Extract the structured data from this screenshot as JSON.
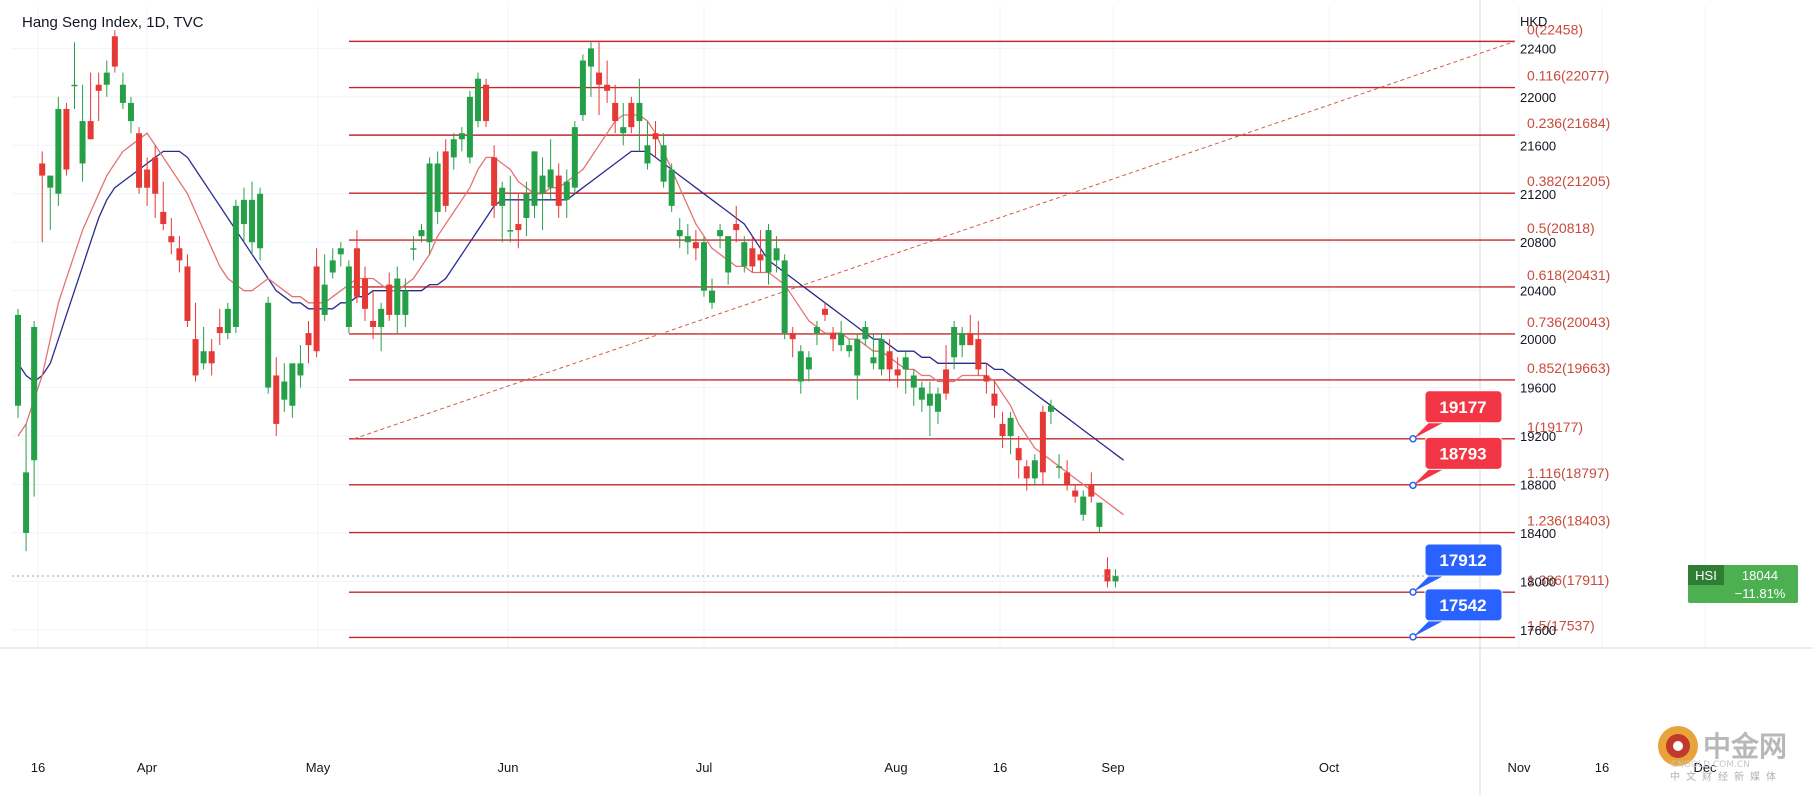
{
  "chart_data": {
    "type": "candlestick",
    "title": "Hang Seng Index, 1D, TVC",
    "currency": "HKD",
    "ylim": [
      17450,
      22750
    ],
    "y_ticks": [
      17600,
      18000,
      18400,
      18800,
      19200,
      19600,
      20000,
      20400,
      20800,
      21200,
      21600,
      22000,
      22400
    ],
    "x_tick_labels": [
      "16",
      "Apr",
      "May",
      "Jun",
      "Jul",
      "Aug",
      "16",
      "Sep",
      "Oct",
      "Nov",
      "16",
      "Dec"
    ],
    "grid": true,
    "fibonacci": {
      "levels": [
        {
          "label": "0(22458)",
          "value": 22458
        },
        {
          "label": "0.116(22077)",
          "value": 22077
        },
        {
          "label": "0.236(21684)",
          "value": 21684
        },
        {
          "label": "0.382(21205)",
          "value": 21205
        },
        {
          "label": "0.5(20818)",
          "value": 20818
        },
        {
          "label": "0.618(20431)",
          "value": 20431
        },
        {
          "label": "0.736(20043)",
          "value": 20043
        },
        {
          "label": "0.852(19663)",
          "value": 19663
        },
        {
          "label": "1(19177)",
          "value": 19177
        },
        {
          "label": "1.116(18797)",
          "value": 18797
        },
        {
          "label": "1.236(18403)",
          "value": 18403
        },
        {
          "label": "1.386(17911)",
          "value": 17911
        },
        {
          "label": "1.5(17537)",
          "value": 17537
        }
      ],
      "trend_start": 19177,
      "trend_end": 22458
    },
    "callouts": [
      {
        "label": "19177",
        "value": 19177,
        "color": "#f23645"
      },
      {
        "label": "18793",
        "value": 18793,
        "color": "#f23645"
      },
      {
        "label": "17912",
        "value": 17912,
        "color": "#2962ff"
      },
      {
        "label": "17542",
        "value": 17542,
        "color": "#2962ff"
      }
    ],
    "last_price": {
      "symbol": "HSI",
      "value": "18044",
      "change": "−11.81%",
      "color": "#4caf50"
    },
    "candles": [
      {
        "o": 19450,
        "h": 20250,
        "l": 19350,
        "c": 20200
      },
      {
        "o": 18400,
        "h": 19300,
        "l": 18250,
        "c": 18900
      },
      {
        "o": 19000,
        "h": 20150,
        "l": 18700,
        "c": 20100
      },
      {
        "o": 21450,
        "h": 21550,
        "l": 20800,
        "c": 21350
      },
      {
        "o": 21250,
        "h": 21350,
        "l": 20900,
        "c": 21350
      },
      {
        "o": 21200,
        "h": 22000,
        "l": 21100,
        "c": 21900
      },
      {
        "o": 21900,
        "h": 21950,
        "l": 21350,
        "c": 21400
      },
      {
        "o": 22100,
        "h": 22450,
        "l": 21900,
        "c": 22100
      },
      {
        "o": 21450,
        "h": 22100,
        "l": 21300,
        "c": 21800
      },
      {
        "o": 21800,
        "h": 22200,
        "l": 21650,
        "c": 21650
      },
      {
        "o": 22100,
        "h": 22200,
        "l": 21800,
        "c": 22050
      },
      {
        "o": 22100,
        "h": 22300,
        "l": 22000,
        "c": 22200
      },
      {
        "o": 22500,
        "h": 22550,
        "l": 22200,
        "c": 22250
      },
      {
        "o": 21950,
        "h": 22200,
        "l": 21900,
        "c": 22100
      },
      {
        "o": 21800,
        "h": 22000,
        "l": 21700,
        "c": 21950
      },
      {
        "o": 21700,
        "h": 21750,
        "l": 21200,
        "c": 21250
      },
      {
        "o": 21400,
        "h": 21500,
        "l": 21100,
        "c": 21250
      },
      {
        "o": 21500,
        "h": 21600,
        "l": 21000,
        "c": 21200
      },
      {
        "o": 21050,
        "h": 21300,
        "l": 20900,
        "c": 20950
      },
      {
        "o": 20850,
        "h": 21000,
        "l": 20700,
        "c": 20800
      },
      {
        "o": 20750,
        "h": 20850,
        "l": 20550,
        "c": 20650
      },
      {
        "o": 20600,
        "h": 20700,
        "l": 20100,
        "c": 20150
      },
      {
        "o": 20000,
        "h": 20300,
        "l": 19650,
        "c": 19700
      },
      {
        "o": 19800,
        "h": 20100,
        "l": 19750,
        "c": 19900
      },
      {
        "o": 19900,
        "h": 20000,
        "l": 19700,
        "c": 19800
      },
      {
        "o": 20100,
        "h": 20250,
        "l": 19950,
        "c": 20050
      },
      {
        "o": 20050,
        "h": 20300,
        "l": 20000,
        "c": 20250
      },
      {
        "o": 20100,
        "h": 21150,
        "l": 20050,
        "c": 21100
      },
      {
        "o": 20950,
        "h": 21250,
        "l": 20800,
        "c": 21150
      },
      {
        "o": 20800,
        "h": 21300,
        "l": 20700,
        "c": 21150
      },
      {
        "o": 20750,
        "h": 21250,
        "l": 20650,
        "c": 21200
      },
      {
        "o": 19600,
        "h": 20350,
        "l": 19550,
        "c": 20300
      },
      {
        "o": 19700,
        "h": 19850,
        "l": 19200,
        "c": 19300
      },
      {
        "o": 19500,
        "h": 19800,
        "l": 19400,
        "c": 19650
      },
      {
        "o": 19450,
        "h": 19800,
        "l": 19350,
        "c": 19800
      },
      {
        "o": 19700,
        "h": 19950,
        "l": 19600,
        "c": 19800
      },
      {
        "o": 20050,
        "h": 20150,
        "l": 19800,
        "c": 19950
      },
      {
        "o": 20600,
        "h": 20750,
        "l": 19850,
        "c": 19900
      },
      {
        "o": 20200,
        "h": 20700,
        "l": 20150,
        "c": 20450
      },
      {
        "o": 20550,
        "h": 20750,
        "l": 20500,
        "c": 20650
      },
      {
        "o": 20700,
        "h": 20800,
        "l": 20600,
        "c": 20750
      },
      {
        "o": 20100,
        "h": 20650,
        "l": 20050,
        "c": 20600
      },
      {
        "o": 20750,
        "h": 20900,
        "l": 20300,
        "c": 20350
      },
      {
        "o": 20500,
        "h": 20600,
        "l": 20150,
        "c": 20250
      },
      {
        "o": 20150,
        "h": 20400,
        "l": 20000,
        "c": 20100
      },
      {
        "o": 20100,
        "h": 20300,
        "l": 19900,
        "c": 20250
      },
      {
        "o": 20450,
        "h": 20550,
        "l": 20150,
        "c": 20200
      },
      {
        "o": 20200,
        "h": 20600,
        "l": 20050,
        "c": 20500
      },
      {
        "o": 20200,
        "h": 20500,
        "l": 20100,
        "c": 20400
      },
      {
        "o": 20750,
        "h": 20850,
        "l": 20650,
        "c": 20750
      },
      {
        "o": 20850,
        "h": 20950,
        "l": 20800,
        "c": 20900
      },
      {
        "o": 20800,
        "h": 21500,
        "l": 20700,
        "c": 21450
      },
      {
        "o": 21050,
        "h": 21550,
        "l": 20950,
        "c": 21450
      },
      {
        "o": 21550,
        "h": 21650,
        "l": 21050,
        "c": 21100
      },
      {
        "o": 21500,
        "h": 21700,
        "l": 21400,
        "c": 21650
      },
      {
        "o": 21650,
        "h": 21750,
        "l": 21550,
        "c": 21700
      },
      {
        "o": 21500,
        "h": 22050,
        "l": 21450,
        "c": 22000
      },
      {
        "o": 21800,
        "h": 22200,
        "l": 21750,
        "c": 22150
      },
      {
        "o": 22100,
        "h": 22150,
        "l": 21750,
        "c": 21800
      },
      {
        "o": 21500,
        "h": 21600,
        "l": 21000,
        "c": 21100
      },
      {
        "o": 21100,
        "h": 21300,
        "l": 20800,
        "c": 21250
      },
      {
        "o": 20900,
        "h": 21350,
        "l": 20800,
        "c": 20900
      },
      {
        "o": 20950,
        "h": 21200,
        "l": 20750,
        "c": 20900
      },
      {
        "o": 21000,
        "h": 21300,
        "l": 20850,
        "c": 21200
      },
      {
        "o": 21100,
        "h": 21550,
        "l": 21000,
        "c": 21550
      },
      {
        "o": 21200,
        "h": 21500,
        "l": 20900,
        "c": 21350
      },
      {
        "o": 21250,
        "h": 21650,
        "l": 21150,
        "c": 21400
      },
      {
        "o": 21350,
        "h": 21450,
        "l": 21000,
        "c": 21100
      },
      {
        "o": 21150,
        "h": 21400,
        "l": 21000,
        "c": 21300
      },
      {
        "o": 21250,
        "h": 21800,
        "l": 21200,
        "c": 21750
      },
      {
        "o": 21850,
        "h": 22350,
        "l": 21800,
        "c": 22300
      },
      {
        "o": 22250,
        "h": 22450,
        "l": 22000,
        "c": 22400
      },
      {
        "o": 22200,
        "h": 22450,
        "l": 21850,
        "c": 22100
      },
      {
        "o": 22100,
        "h": 22300,
        "l": 21950,
        "c": 22050
      },
      {
        "o": 21950,
        "h": 22100,
        "l": 21700,
        "c": 21800
      },
      {
        "o": 21700,
        "h": 21950,
        "l": 21600,
        "c": 21750
      },
      {
        "o": 21950,
        "h": 22000,
        "l": 21700,
        "c": 21750
      },
      {
        "o": 21800,
        "h": 22150,
        "l": 21550,
        "c": 21950
      },
      {
        "o": 21450,
        "h": 21800,
        "l": 21400,
        "c": 21600
      },
      {
        "o": 21700,
        "h": 21800,
        "l": 21500,
        "c": 21650
      },
      {
        "o": 21300,
        "h": 21700,
        "l": 21250,
        "c": 21600
      },
      {
        "o": 21100,
        "h": 21450,
        "l": 21050,
        "c": 21400
      },
      {
        "o": 20850,
        "h": 21000,
        "l": 20750,
        "c": 20900
      },
      {
        "o": 20800,
        "h": 20950,
        "l": 20700,
        "c": 20850
      },
      {
        "o": 20800,
        "h": 20900,
        "l": 20650,
        "c": 20750
      },
      {
        "o": 20400,
        "h": 20850,
        "l": 20350,
        "c": 20800
      },
      {
        "o": 20300,
        "h": 20500,
        "l": 20250,
        "c": 20400
      },
      {
        "o": 20850,
        "h": 20950,
        "l": 20750,
        "c": 20900
      },
      {
        "o": 20550,
        "h": 20800,
        "l": 20450,
        "c": 20850
      },
      {
        "o": 20950,
        "h": 21100,
        "l": 20800,
        "c": 20900
      },
      {
        "o": 20600,
        "h": 20850,
        "l": 20550,
        "c": 20800
      },
      {
        "o": 20750,
        "h": 20850,
        "l": 20550,
        "c": 20600
      },
      {
        "o": 20700,
        "h": 20900,
        "l": 20550,
        "c": 20650
      },
      {
        "o": 20550,
        "h": 20950,
        "l": 20450,
        "c": 20900
      },
      {
        "o": 20650,
        "h": 20850,
        "l": 20550,
        "c": 20750
      },
      {
        "o": 20050,
        "h": 20700,
        "l": 20000,
        "c": 20650
      },
      {
        "o": 20050,
        "h": 20100,
        "l": 19850,
        "c": 20000
      },
      {
        "o": 19650,
        "h": 19950,
        "l": 19550,
        "c": 19900
      },
      {
        "o": 19750,
        "h": 19900,
        "l": 19650,
        "c": 19850
      },
      {
        "o": 20050,
        "h": 20150,
        "l": 19950,
        "c": 20100
      },
      {
        "o": 20250,
        "h": 20300,
        "l": 20150,
        "c": 20200
      },
      {
        "o": 20050,
        "h": 20100,
        "l": 19900,
        "c": 20000
      },
      {
        "o": 19950,
        "h": 20150,
        "l": 19900,
        "c": 20050
      },
      {
        "o": 19900,
        "h": 20000,
        "l": 19850,
        "c": 19950
      },
      {
        "o": 19700,
        "h": 20050,
        "l": 19500,
        "c": 20000
      },
      {
        "o": 20000,
        "h": 20150,
        "l": 19950,
        "c": 20100
      },
      {
        "o": 19800,
        "h": 20050,
        "l": 19750,
        "c": 19850
      },
      {
        "o": 19750,
        "h": 20050,
        "l": 19700,
        "c": 20000
      },
      {
        "o": 19900,
        "h": 20000,
        "l": 19650,
        "c": 19750
      },
      {
        "o": 19750,
        "h": 19850,
        "l": 19600,
        "c": 19700
      },
      {
        "o": 19750,
        "h": 19900,
        "l": 19550,
        "c": 19850
      },
      {
        "o": 19600,
        "h": 19750,
        "l": 19450,
        "c": 19700
      },
      {
        "o": 19500,
        "h": 19650,
        "l": 19400,
        "c": 19600
      },
      {
        "o": 19450,
        "h": 19650,
        "l": 19200,
        "c": 19550
      },
      {
        "o": 19400,
        "h": 19600,
        "l": 19300,
        "c": 19550
      },
      {
        "o": 19750,
        "h": 19950,
        "l": 19500,
        "c": 19550
      },
      {
        "o": 19850,
        "h": 20150,
        "l": 19750,
        "c": 20100
      },
      {
        "o": 19950,
        "h": 20100,
        "l": 19850,
        "c": 20050
      },
      {
        "o": 20050,
        "h": 20200,
        "l": 19950,
        "c": 19950
      },
      {
        "o": 20000,
        "h": 20150,
        "l": 19700,
        "c": 19750
      },
      {
        "o": 19700,
        "h": 19800,
        "l": 19550,
        "c": 19650
      },
      {
        "o": 19550,
        "h": 19650,
        "l": 19350,
        "c": 19450
      },
      {
        "o": 19300,
        "h": 19400,
        "l": 19100,
        "c": 19200
      },
      {
        "o": 19200,
        "h": 19400,
        "l": 19050,
        "c": 19350
      },
      {
        "o": 19100,
        "h": 19200,
        "l": 18850,
        "c": 19000
      },
      {
        "o": 18950,
        "h": 19000,
        "l": 18750,
        "c": 18850
      },
      {
        "o": 18850,
        "h": 19050,
        "l": 18800,
        "c": 19000
      },
      {
        "o": 19400,
        "h": 19450,
        "l": 18800,
        "c": 18900
      },
      {
        "o": 19400,
        "h": 19500,
        "l": 19300,
        "c": 19450
      },
      {
        "o": 18950,
        "h": 19050,
        "l": 18850,
        "c": 18950
      },
      {
        "o": 18900,
        "h": 19000,
        "l": 18750,
        "c": 18800
      },
      {
        "o": 18750,
        "h": 18800,
        "l": 18650,
        "c": 18700
      },
      {
        "o": 18550,
        "h": 18750,
        "l": 18500,
        "c": 18700
      },
      {
        "o": 18800,
        "h": 18900,
        "l": 18650,
        "c": 18700
      },
      {
        "o": 18450,
        "h": 18650,
        "l": 18400,
        "c": 18650
      },
      {
        "o": 18100,
        "h": 18200,
        "l": 17950,
        "c": 18000
      },
      {
        "o": 18000,
        "h": 18100,
        "l": 17950,
        "c": 18044
      }
    ],
    "ma_fast": [
      19200,
      19300,
      19500,
      19700,
      20000,
      20300,
      20500,
      20700,
      20900,
      21050,
      21200,
      21350,
      21450,
      21550,
      21600,
      21650,
      21700,
      21600,
      21500,
      21400,
      21300,
      21200,
      21050,
      20900,
      20750,
      20600,
      20500,
      20450,
      20400,
      20400,
      20450,
      20500,
      20450,
      20400,
      20350,
      20350,
      20300,
      20300,
      20300,
      20350,
      20400,
      20450,
      20500,
      20500,
      20500,
      20450,
      20400,
      20400,
      20450,
      20500,
      20600,
      20700,
      20850,
      20950,
      21050,
      21150,
      21250,
      21400,
      21500,
      21500,
      21450,
      21400,
      21300,
      21250,
      21200,
      21200,
      21250,
      21250,
      21300,
      21350,
      21400,
      21500,
      21600,
      21700,
      21800,
      21850,
      21850,
      21850,
      21800,
      21700,
      21550,
      21400,
      21250,
      21100,
      20950,
      20850,
      20750,
      20700,
      20650,
      20600,
      20600,
      20550,
      20550,
      20550,
      20500,
      20450,
      20350,
      20250,
      20150,
      20100,
      20050,
      20050,
      20050,
      20000,
      20000,
      19950,
      19900,
      19900,
      19850,
      19800,
      19750,
      19750,
      19700,
      19700,
      19650,
      19650,
      19650,
      19700,
      19700,
      19700,
      19700,
      19650,
      19550,
      19450,
      19300,
      19200,
      19100,
      19050,
      19000,
      18950,
      18900,
      18850,
      18800,
      18750,
      18700,
      18650,
      18600,
      18550
    ],
    "ma_slow": [
      19800,
      19700,
      19650,
      19700,
      19800,
      20000,
      20200,
      20400,
      20600,
      20800,
      21000,
      21150,
      21250,
      21300,
      21350,
      21400,
      21450,
      21500,
      21550,
      21550,
      21550,
      21500,
      21400,
      21300,
      21200,
      21100,
      21000,
      20900,
      20800,
      20700,
      20600,
      20500,
      20400,
      20350,
      20300,
      20300,
      20250,
      20250,
      20250,
      20250,
      20300,
      20300,
      20350,
      20350,
      20400,
      20400,
      20400,
      20400,
      20400,
      20400,
      20400,
      20450,
      20450,
      20500,
      20600,
      20700,
      20800,
      20900,
      21000,
      21100,
      21150,
      21150,
      21150,
      21150,
      21150,
      21150,
      21150,
      21150,
      21150,
      21200,
      21250,
      21300,
      21350,
      21400,
      21450,
      21500,
      21550,
      21550,
      21550,
      21500,
      21450,
      21400,
      21350,
      21300,
      21250,
      21200,
      21150,
      21100,
      21050,
      21000,
      20950,
      20850,
      20750,
      20650,
      20600,
      20550,
      20500,
      20450,
      20400,
      20350,
      20300,
      20250,
      20200,
      20150,
      20100,
      20050,
      20000,
      20000,
      19950,
      19900,
      19900,
      19900,
      19850,
      19850,
      19800,
      19800,
      19800,
      19800,
      19800,
      19800,
      19800,
      19750,
      19750,
      19700,
      19650,
      19600,
      19550,
      19500,
      19450,
      19400,
      19350,
      19300,
      19250,
      19200,
      19150,
      19100,
      19050,
      19000
    ]
  },
  "logo": {
    "main": "中金网",
    "url": "CNGOLD.COM.CN",
    "tagline": "中文财经新媒体"
  }
}
